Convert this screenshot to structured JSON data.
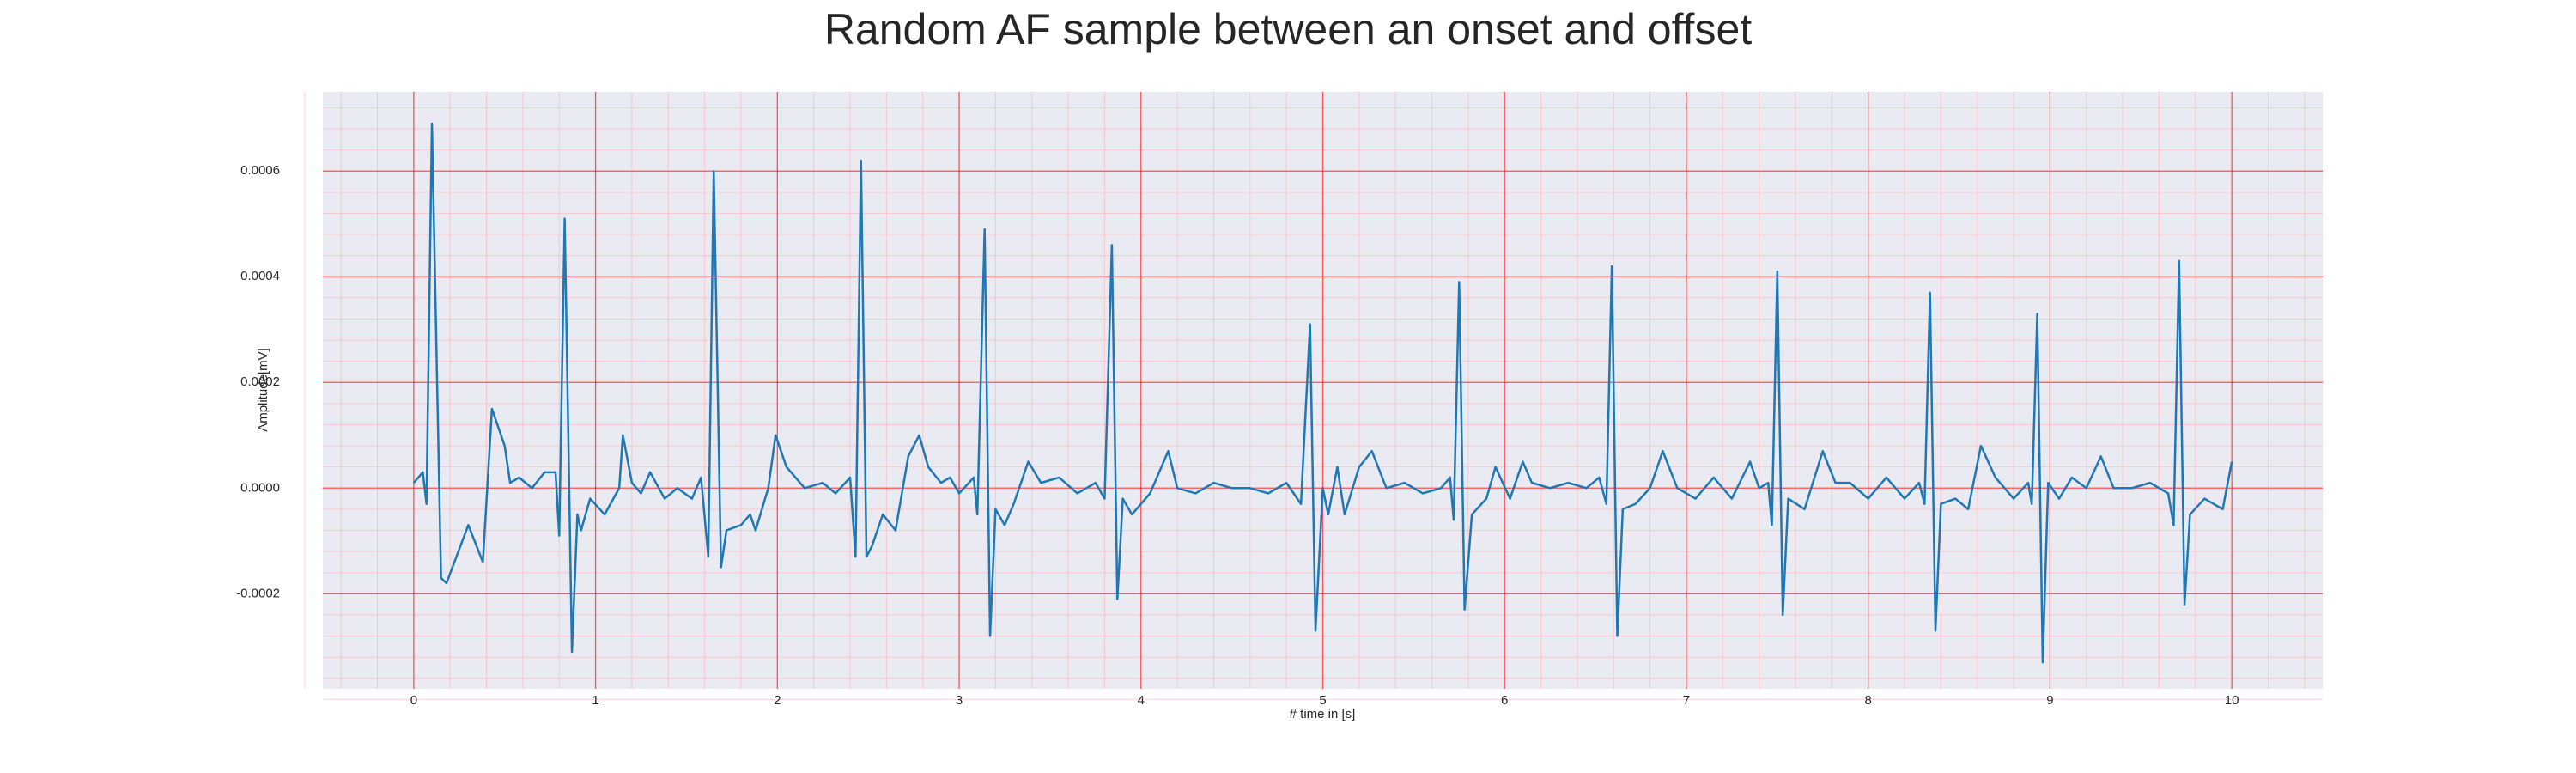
{
  "chart_data": {
    "type": "line",
    "title": "Random AF sample between an onset and offset",
    "x_label": "# time in [s]",
    "y_label": "Amplitude[mV]",
    "color": "#1f77b4",
    "grid": true,
    "xlim": [
      -0.5,
      10.5
    ],
    "ylim": [
      -0.00038,
      0.00075
    ],
    "xticks": [
      0,
      1,
      2,
      3,
      4,
      5,
      6,
      7,
      8,
      9,
      10
    ],
    "yticks": [
      {
        "value": -0.0002,
        "label": "-0.0002"
      },
      {
        "value": 0,
        "label": "0.0000"
      },
      0.0002,
      0.0004,
      0.0006
    ],
    "x": [
      0,
      0.05,
      0.07,
      0.1,
      0.15,
      0.18,
      0.3,
      0.38,
      0.43,
      0.5,
      0.53,
      0.58,
      0.65,
      0.72,
      0.78,
      0.8,
      0.83,
      0.87,
      0.9,
      0.92,
      0.97,
      1.05,
      1.13,
      1.15,
      1.2,
      1.25,
      1.3,
      1.38,
      1.45,
      1.53,
      1.58,
      1.62,
      1.65,
      1.69,
      1.72,
      1.8,
      1.85,
      1.88,
      1.95,
      1.99,
      2.05,
      2.1,
      2.15,
      2.25,
      2.32,
      2.4,
      2.43,
      2.46,
      2.49,
      2.52,
      2.58,
      2.65,
      2.72,
      2.78,
      2.83,
      2.9,
      2.95,
      3.0,
      3.08,
      3.1,
      3.14,
      3.17,
      3.2,
      3.25,
      3.3,
      3.38,
      3.45,
      3.55,
      3.65,
      3.75,
      3.8,
      3.84,
      3.87,
      3.9,
      3.95,
      4.05,
      4.15,
      4.2,
      4.3,
      4.4,
      4.5,
      4.6,
      4.7,
      4.8,
      4.88,
      4.93,
      4.96,
      5.0,
      5.03,
      5.08,
      5.12,
      5.2,
      5.27,
      5.35,
      5.45,
      5.55,
      5.65,
      5.7,
      5.72,
      5.75,
      5.78,
      5.82,
      5.9,
      5.95,
      6.03,
      6.1,
      6.15,
      6.25,
      6.35,
      6.45,
      6.52,
      6.56,
      6.59,
      6.62,
      6.65,
      6.72,
      6.8,
      6.87,
      6.95,
      7.05,
      7.15,
      7.25,
      7.35,
      7.4,
      7.45,
      7.47,
      7.5,
      7.53,
      7.56,
      7.65,
      7.75,
      7.82,
      7.9,
      8.0,
      8.1,
      8.2,
      8.28,
      8.31,
      8.34,
      8.37,
      8.4,
      8.48,
      8.55,
      8.62,
      8.7,
      8.8,
      8.88,
      8.9,
      8.93,
      8.96,
      8.99,
      9.05,
      9.12,
      9.2,
      9.28,
      9.35,
      9.45,
      9.55,
      9.65,
      9.68,
      9.71,
      9.74,
      9.77,
      9.85,
      9.95,
      10.0
    ],
    "values": [
      1e-05,
      3e-05,
      -3e-05,
      0.00069,
      -0.00017,
      -0.00018,
      -7e-05,
      -0.00014,
      0.00015,
      8e-05,
      1e-05,
      2e-05,
      0.0,
      3e-05,
      3e-05,
      -9e-05,
      0.00051,
      -0.00031,
      -5e-05,
      -8e-05,
      -2e-05,
      -5e-05,
      0.0,
      0.0001,
      1e-05,
      -1e-05,
      3e-05,
      -2e-05,
      0.0,
      -2e-05,
      2e-05,
      -0.00013,
      0.0006,
      -0.00015,
      -8e-05,
      -7e-05,
      -5e-05,
      -8e-05,
      0.0,
      0.0001,
      4e-05,
      2e-05,
      0.0,
      1e-05,
      -1e-05,
      2e-05,
      -0.00013,
      0.00062,
      -0.00013,
      -0.00011,
      -5e-05,
      -8e-05,
      6e-05,
      0.0001,
      4e-05,
      1e-05,
      2e-05,
      -1e-05,
      2e-05,
      -5e-05,
      0.00049,
      -0.00028,
      -4e-05,
      -7e-05,
      -3e-05,
      5e-05,
      1e-05,
      2e-05,
      -1e-05,
      1e-05,
      -2e-05,
      0.00046,
      -0.00021,
      -2e-05,
      -5e-05,
      -1e-05,
      7e-05,
      0.0,
      -1e-05,
      1e-05,
      0.0,
      0.0,
      -1e-05,
      1e-05,
      -3e-05,
      0.00031,
      -0.00027,
      0.0,
      -5e-05,
      4e-05,
      -5e-05,
      4e-05,
      7e-05,
      0.0,
      1e-05,
      -1e-05,
      0.0,
      2e-05,
      -6e-05,
      0.00039,
      -0.00023,
      -5e-05,
      -2e-05,
      4e-05,
      -2e-05,
      5e-05,
      1e-05,
      0.0,
      1e-05,
      0.0,
      2e-05,
      -3e-05,
      0.00042,
      -0.00028,
      -4e-05,
      -3e-05,
      0.0,
      7e-05,
      0.0,
      -2e-05,
      2e-05,
      -2e-05,
      5e-05,
      0.0,
      1e-05,
      -7e-05,
      0.00041,
      -0.00024,
      -2e-05,
      -4e-05,
      7e-05,
      1e-05,
      1e-05,
      -2e-05,
      2e-05,
      -2e-05,
      1e-05,
      -3e-05,
      0.00037,
      -0.00027,
      -3e-05,
      -2e-05,
      -4e-05,
      8e-05,
      2e-05,
      -2e-05,
      1e-05,
      -3e-05,
      0.00033,
      -0.00033,
      1e-05,
      -2e-05,
      2e-05,
      0.0,
      6e-05,
      0.0,
      0.0,
      1e-05,
      -1e-05,
      -7e-05,
      0.00043,
      -0.00022,
      -5e-05,
      -2e-05,
      -4e-05,
      5e-05
    ]
  }
}
